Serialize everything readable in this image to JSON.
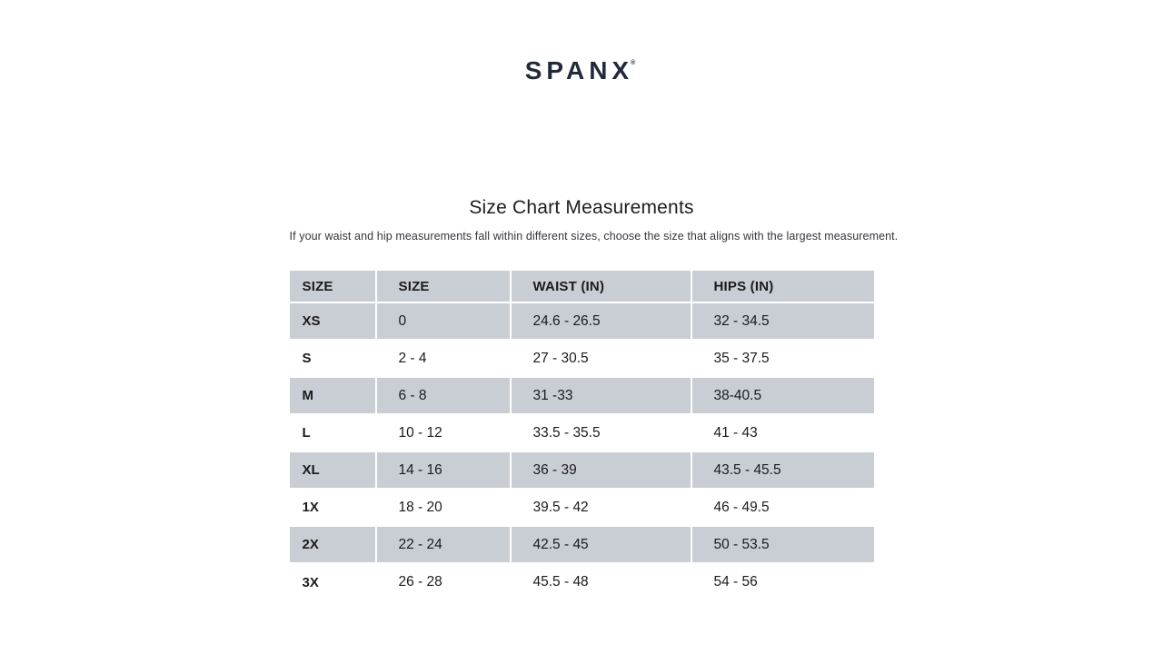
{
  "colors": {
    "page_bg": "#ffffff",
    "logo": "#222a3a",
    "table_stripe": "#c9cdd4",
    "table_text": "#1b1b1b"
  },
  "brand": {
    "logo_text": "SPANX",
    "trademark": "®"
  },
  "content": {
    "title": "Size Chart Measurements",
    "subtitle": "If your waist and hip measurements fall within different sizes, choose the size that aligns with the largest measurement."
  },
  "chart_data": {
    "type": "table",
    "title": "Size Chart Measurements",
    "columns": [
      "SIZE",
      "SIZE",
      "WAIST (IN)",
      "HIPS (IN)"
    ],
    "rows": [
      [
        "XS",
        "0",
        "24.6 - 26.5",
        "32 - 34.5"
      ],
      [
        "S",
        "2 - 4",
        "27 - 30.5",
        "35 - 37.5"
      ],
      [
        "M",
        "6 - 8",
        "31 -33",
        "38-40.5"
      ],
      [
        "L",
        "10 - 12",
        "33.5 - 35.5",
        "41 - 43"
      ],
      [
        "XL",
        "14 - 16",
        "36 - 39",
        "43.5 - 45.5"
      ],
      [
        "1X",
        "18 - 20",
        "39.5 - 42",
        "46 - 49.5"
      ],
      [
        "2X",
        "22 - 24",
        "42.5 - 45",
        "50 - 53.5"
      ],
      [
        "3X",
        "26 - 28",
        "45.5 - 48",
        "54 - 56"
      ]
    ],
    "layout": {
      "header_background": "#c9cdd4",
      "striped_row_background": "#c9cdd4",
      "striped_rows": [
        "XS",
        "M",
        "XL",
        "2X"
      ],
      "separator_color": "#ffffff"
    }
  }
}
